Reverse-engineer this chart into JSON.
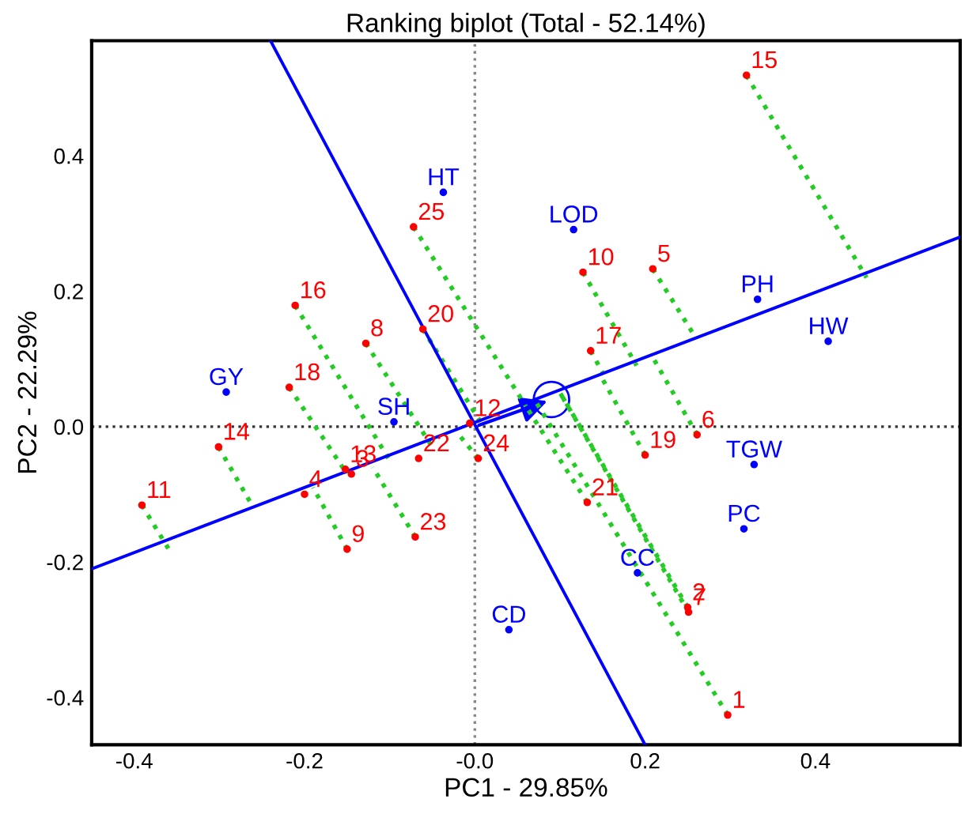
{
  "chart_data": {
    "type": "scatter",
    "title": "Ranking biplot (Total - 52.14%)",
    "xlabel": "PC1 - 29.85%",
    "ylabel": "PC2 - 22.29%",
    "xlim": [
      -0.45,
      0.57
    ],
    "ylim": [
      -0.47,
      0.57
    ],
    "xticks": [
      -0.4,
      -0.2,
      {
        "value": 0,
        "label": "-0.0"
      },
      0.2,
      0.4
    ],
    "yticks": [
      -0.4,
      -0.2,
      {
        "value": 0,
        "label": "0.0"
      },
      0.2,
      0.4
    ],
    "grid": false,
    "ref_lines": [
      {
        "axis": "x",
        "value": 0,
        "color": "#888888",
        "line_style": "dotted"
      },
      {
        "axis": "y",
        "value": 0,
        "color": "#333333",
        "line_style": "dotted"
      }
    ],
    "series": [
      {
        "type": "line",
        "color": "#22cc22",
        "line_style": "dotted",
        "marker": "none",
        "x": [
          0.319,
          0.46,
          null,
          0.127,
          0.19,
          null,
          0.209,
          0.26,
          null,
          0.136,
          0.15,
          null,
          -0.072,
          0.06,
          null,
          -0.211,
          -0.1,
          null,
          -0.061,
          0.01,
          null,
          -0.128,
          -0.05,
          null,
          -0.218,
          -0.15,
          null,
          -0.301,
          -0.26,
          null,
          -0.391,
          -0.36,
          null,
          -0.152,
          -0.15,
          null,
          -0.15,
          -0.19,
          null,
          -0.07,
          -0.12,
          null,
          0.004,
          -0.02,
          null,
          0.132,
          0.06,
          null,
          0.2,
          0.15,
          null,
          0.261,
          0.21,
          null,
          0.25,
          0.1,
          null,
          0.251,
          0.1,
          null,
          0.297,
          0.07
        ],
        "values": [
          0.519,
          0.22,
          null,
          0.228,
          0.09,
          null,
          0.233,
          0.13,
          null,
          0.112,
          0.08,
          null,
          0.295,
          0.03,
          null,
          0.179,
          -0.05,
          null,
          0.144,
          0.0,
          null,
          0.123,
          -0.03,
          null,
          0.058,
          -0.07,
          null,
          -0.03,
          -0.12,
          null,
          -0.116,
          -0.18,
          null,
          -0.063,
          -0.07,
          null,
          -0.181,
          -0.09,
          null,
          -0.163,
          -0.06,
          null,
          -0.047,
          -0.01,
          null,
          -0.112,
          0.03,
          null,
          -0.042,
          0.07,
          null,
          -0.012,
          0.1,
          null,
          -0.267,
          0.05,
          null,
          -0.274,
          0.05,
          null,
          -0.426,
          0.04
        ]
      },
      {
        "type": "line",
        "color": "#0000ff",
        "line_style": "solid",
        "marker": "none",
        "x": [
          -0.45,
          0.57
        ],
        "values": [
          -0.21,
          0.28
        ]
      },
      {
        "type": "line",
        "color": "#0000ff",
        "line_style": "solid",
        "marker": "none",
        "x": [
          -0.24,
          0.2
        ],
        "values": [
          0.57,
          -0.47
        ]
      },
      {
        "type": "scatter",
        "color": "#0000ff",
        "marker": "circle",
        "x": [
          0.09
        ],
        "values": [
          0.04
        ]
      },
      {
        "type": "scatter",
        "color": "#ff0000",
        "marker": "circle",
        "x": [
          0.319,
          0.127,
          0.209,
          0.136,
          -0.072,
          -0.211,
          -0.061,
          -0.128,
          -0.218,
          -0.301,
          -0.391,
          -0.152,
          -0.145,
          -0.2,
          -0.15,
          -0.066,
          -0.07,
          -0.006,
          0.004,
          0.132,
          0.2,
          0.261,
          0.25,
          0.251,
          0.297
        ],
        "values": [
          0.519,
          0.228,
          0.233,
          0.112,
          0.295,
          0.179,
          0.144,
          0.123,
          0.058,
          -0.03,
          -0.116,
          -0.063,
          -0.07,
          -0.1,
          -0.181,
          -0.047,
          -0.163,
          0.005,
          -0.047,
          -0.112,
          -0.042,
          -0.012,
          -0.267,
          -0.274,
          -0.426
        ]
      },
      {
        "type": "scatter",
        "color": "#0000ff",
        "marker": "circle",
        "x": [
          -0.037,
          0.116,
          0.332,
          0.415,
          -0.292,
          -0.095,
          0.328,
          0.316,
          0.191,
          0.04
        ],
        "values": [
          0.346,
          0.291,
          0.188,
          0.126,
          0.051,
          0.007,
          -0.056,
          -0.151,
          -0.216,
          -0.3
        ]
      }
    ],
    "annotations": [
      {
        "text": "15",
        "x": 0.319,
        "y": 0.519
      },
      {
        "text": "10",
        "x": 0.127,
        "y": 0.228
      },
      {
        "text": "5",
        "x": 0.209,
        "y": 0.233
      },
      {
        "text": "17",
        "x": 0.136,
        "y": 0.112
      },
      {
        "text": "25",
        "x": -0.072,
        "y": 0.295
      },
      {
        "text": "16",
        "x": -0.211,
        "y": 0.179
      },
      {
        "text": "20",
        "x": -0.061,
        "y": 0.144
      },
      {
        "text": "8",
        "x": -0.128,
        "y": 0.123
      },
      {
        "text": "18",
        "x": -0.218,
        "y": 0.058
      },
      {
        "text": "14",
        "x": -0.301,
        "y": -0.03
      },
      {
        "text": "11",
        "x": -0.391,
        "y": -0.116
      },
      {
        "text": "13",
        "x": -0.152,
        "y": -0.063
      },
      {
        "text": "3",
        "x": -0.145,
        "y": -0.07
      },
      {
        "text": "4",
        "x": -0.2,
        "y": -0.1
      },
      {
        "text": "9",
        "x": -0.15,
        "y": -0.181
      },
      {
        "text": "22",
        "x": -0.066,
        "y": -0.047
      },
      {
        "text": "23",
        "x": -0.07,
        "y": -0.163
      },
      {
        "text": "12",
        "x": -0.006,
        "y": 0.005
      },
      {
        "text": "24",
        "x": 0.004,
        "y": -0.047
      },
      {
        "text": "21",
        "x": 0.132,
        "y": -0.112
      },
      {
        "text": "19",
        "x": 0.2,
        "y": -0.042
      },
      {
        "text": "6",
        "x": 0.261,
        "y": -0.012
      },
      {
        "text": "2",
        "x": 0.25,
        "y": -0.267
      },
      {
        "text": "7",
        "x": 0.251,
        "y": -0.274
      },
      {
        "text": "1",
        "x": 0.297,
        "y": -0.426
      },
      {
        "text": "HT",
        "x": -0.037,
        "y": 0.346
      },
      {
        "text": "LOD",
        "x": 0.116,
        "y": 0.291
      },
      {
        "text": "PH",
        "x": 0.332,
        "y": 0.188
      },
      {
        "text": "HW",
        "x": 0.415,
        "y": 0.126
      },
      {
        "text": "GY",
        "x": -0.292,
        "y": 0.051
      },
      {
        "text": "SH",
        "x": -0.095,
        "y": 0.007
      },
      {
        "text": "TGW",
        "x": 0.328,
        "y": -0.056
      },
      {
        "text": "PC",
        "x": 0.316,
        "y": -0.151
      },
      {
        "text": "CC",
        "x": 0.191,
        "y": -0.216
      },
      {
        "text": "CD",
        "x": 0.04,
        "y": -0.3
      }
    ]
  }
}
